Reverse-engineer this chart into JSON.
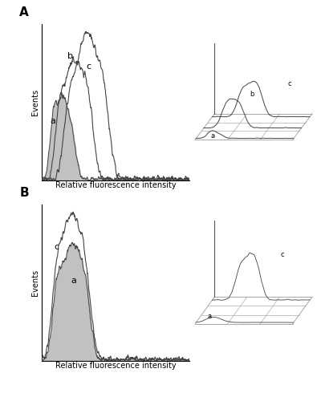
{
  "fig_width": 4.0,
  "fig_height": 5.0,
  "bg_color": "#ffffff",
  "panel_A_label": "A",
  "panel_B_label": "B",
  "xlabel": "Relative fluorescence intensity",
  "ylabel": "Events",
  "curve_color": "#444444",
  "fill_color": "#bbbbbb",
  "grid_color": "#999999"
}
